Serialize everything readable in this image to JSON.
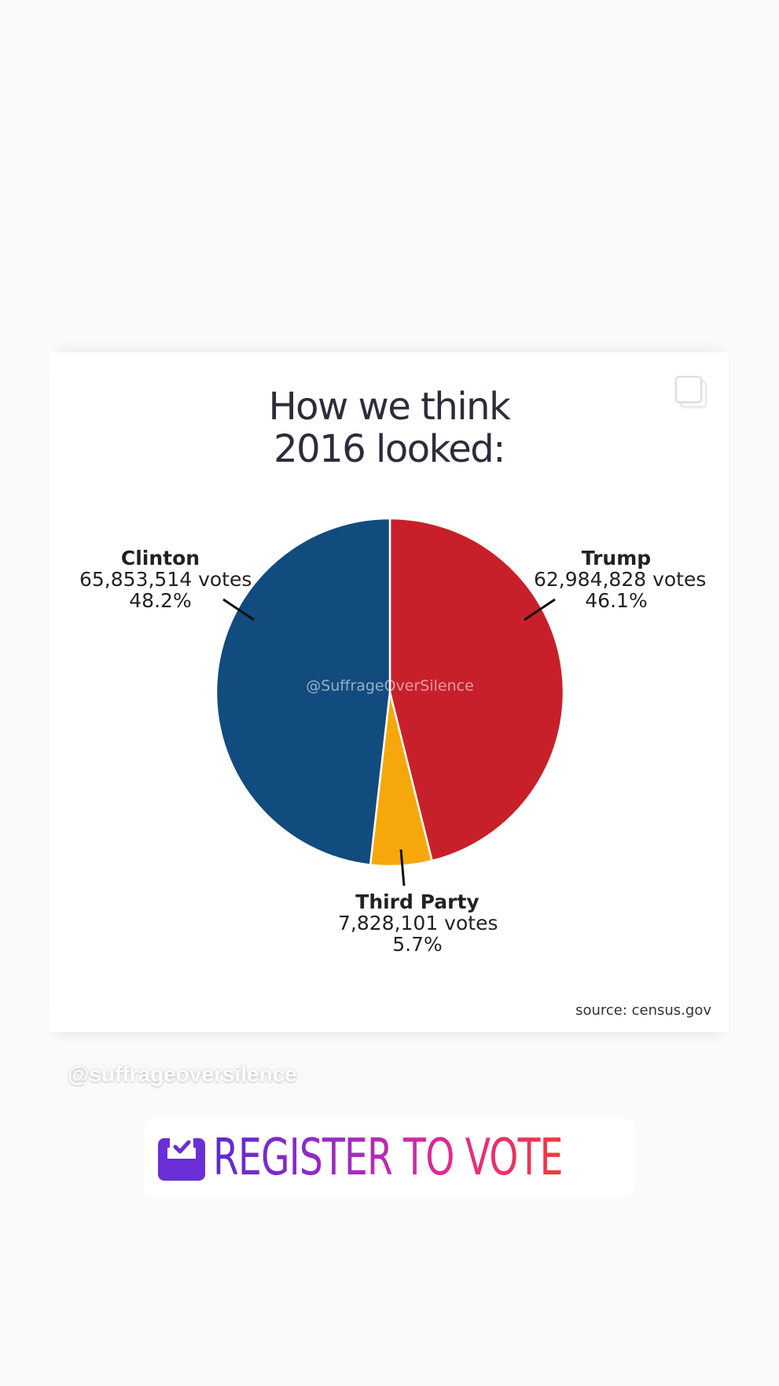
{
  "post": {
    "title_line1": "How we think",
    "title_line2": "2016 looked:",
    "watermark": "@SuffrageOverSilence",
    "source": "source: census.gov",
    "multi_post_icon": "carousel-icon"
  },
  "chart_data": {
    "type": "pie",
    "title": "How we think 2016 looked:",
    "slices": [
      {
        "name": "Trump",
        "votes_label": "62,984,828 votes",
        "percent_label": "46.1%",
        "votes": 62984828,
        "percent": 46.1,
        "color": "#c8202a"
      },
      {
        "name": "Third Party",
        "votes_label": "7,828,101 votes",
        "percent_label": "5.7%",
        "votes": 7828101,
        "percent": 5.7,
        "color": "#f6a80a"
      },
      {
        "name": "Clinton",
        "votes_label": "65,853,514 votes",
        "percent_label": "48.2%",
        "votes": 65853514,
        "percent": 48.2,
        "color": "#124b7e"
      }
    ],
    "start": "12 o'clock, clockwise",
    "legend": "none"
  },
  "story": {
    "handle": "@suffrageoversilence",
    "sticker_label": "REGISTER TO VOTE",
    "sticker_icon": "ballot-box-check-icon",
    "sticker_gradient": [
      "#5b2bd3",
      "#a52bc0",
      "#e52b8a",
      "#ef3a3a"
    ]
  }
}
